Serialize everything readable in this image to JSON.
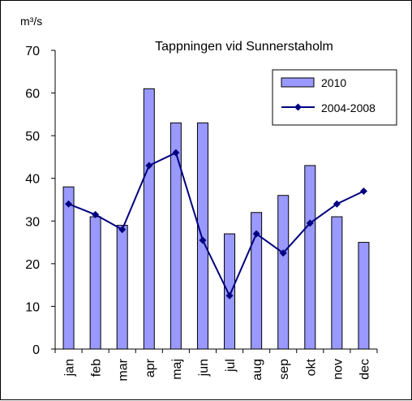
{
  "chart_data": {
    "type": "bar",
    "title": "Tappningen vid Sunnerstaholm",
    "ylabel": "m³/s",
    "xlabel": "",
    "ylim": [
      0,
      70
    ],
    "yticks": [
      0,
      10,
      20,
      30,
      40,
      50,
      60,
      70
    ],
    "grid": false,
    "legend_position": "top-right",
    "categories": [
      "jan",
      "feb",
      "mar",
      "apr",
      "maj",
      "jun",
      "jul",
      "aug",
      "sep",
      "okt",
      "nov",
      "dec"
    ],
    "series": [
      {
        "name": "2010",
        "type": "bar",
        "color": "#9999ff",
        "values": [
          38,
          31,
          29,
          61,
          53,
          53,
          27,
          32,
          36,
          43,
          31,
          25
        ]
      },
      {
        "name": "2004-2008",
        "type": "line",
        "marker": "diamond",
        "color": "#000080",
        "values": [
          34,
          31.5,
          28,
          43,
          46,
          25.5,
          12.5,
          27,
          22.5,
          29.5,
          34,
          37
        ]
      }
    ]
  }
}
